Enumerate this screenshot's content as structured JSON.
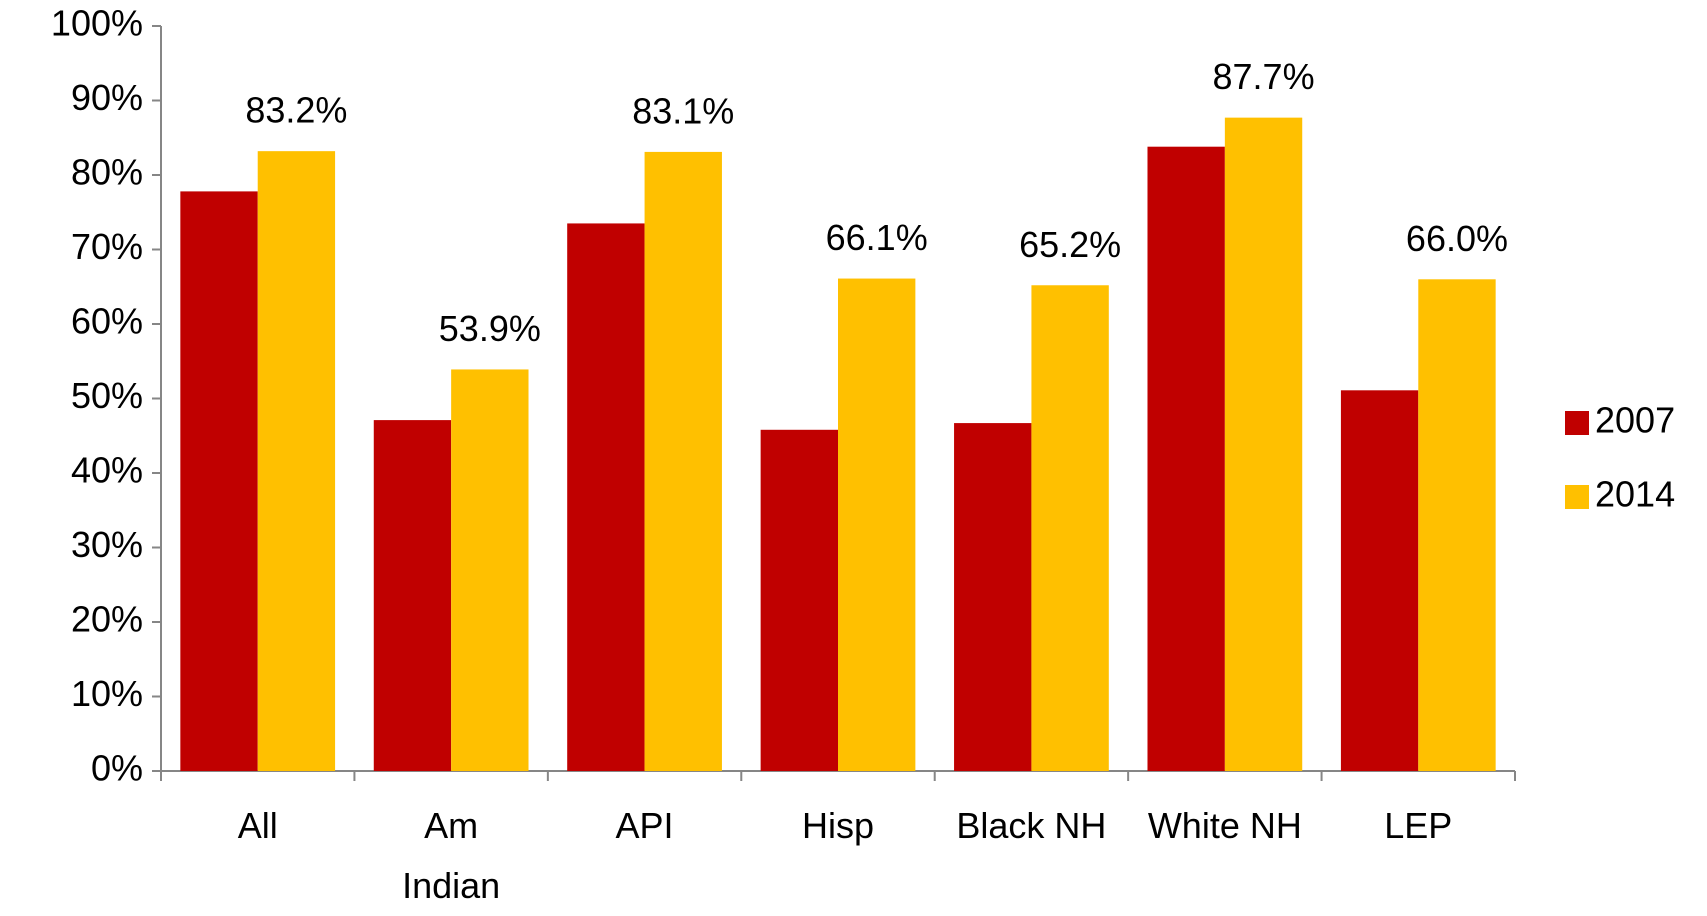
{
  "chart_data": {
    "type": "bar",
    "categories": [
      "All",
      "Am\nIndian",
      "API",
      "Hisp",
      "Black NH",
      "White NH",
      "LEP"
    ],
    "series": [
      {
        "name": "2007",
        "color": "#c00000",
        "values": [
          77.8,
          47.1,
          73.5,
          45.8,
          46.7,
          83.8,
          51.1
        ]
      },
      {
        "name": "2014",
        "color": "#ffc000",
        "values": [
          83.2,
          53.9,
          83.1,
          66.1,
          65.2,
          87.7,
          66.0
        ],
        "value_labels": [
          "83.2%",
          "53.9%",
          "83.1%",
          "66.1%",
          "65.2%",
          "87.7%",
          "66.0%"
        ]
      }
    ],
    "ylim": [
      0,
      100
    ],
    "yticks": [
      {
        "value": 0,
        "label": "0%"
      },
      {
        "value": 10,
        "label": "10%"
      },
      {
        "value": 20,
        "label": "20%"
      },
      {
        "value": 30,
        "label": "30%"
      },
      {
        "value": 40,
        "label": "40%"
      },
      {
        "value": 50,
        "label": "50%"
      },
      {
        "value": 60,
        "label": "60%"
      },
      {
        "value": 70,
        "label": "70%"
      },
      {
        "value": 80,
        "label": "80%"
      },
      {
        "value": 90,
        "label": "90%"
      },
      {
        "value": 100,
        "label": "100%"
      }
    ],
    "legend": "right"
  }
}
